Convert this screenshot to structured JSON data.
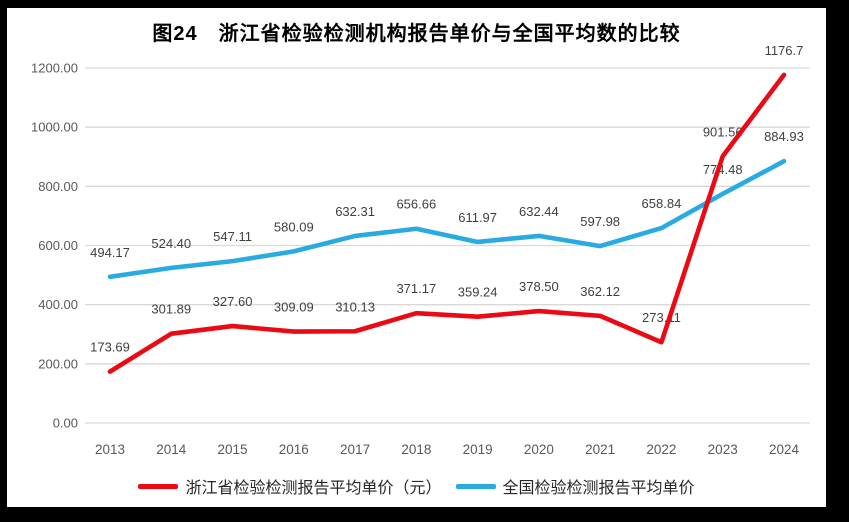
{
  "window": {
    "background": "#000000",
    "panel_background": "#ffffff"
  },
  "chart_data": {
    "type": "line",
    "title": "图24　浙江省检验检测机构报告单价与全国平均数的比较",
    "categories": [
      "2013",
      "2014",
      "2015",
      "2016",
      "2017",
      "2018",
      "2019",
      "2020",
      "2021",
      "2022",
      "2023",
      "2024"
    ],
    "series": [
      {
        "name": "浙江省检验检测报告平均单价（元）",
        "color": "#eb0a14",
        "values": [
          173.69,
          301.89,
          327.6,
          309.09,
          310.13,
          371.17,
          359.24,
          378.5,
          362.12,
          273.11,
          901.56,
          1176.7
        ],
        "labels": [
          "173.69",
          "301.89",
          "327.60",
          "309.09",
          "310.13",
          "371.17",
          "359.24",
          "378.50",
          "362.12",
          "273.11",
          "901.56",
          "1176.7"
        ]
      },
      {
        "name": "全国检验检测报告平均单价",
        "color": "#29aae1",
        "values": [
          494.17,
          524.4,
          547.11,
          580.09,
          632.31,
          656.66,
          611.97,
          632.44,
          597.98,
          658.84,
          774.48,
          884.93
        ],
        "labels": [
          "494.17",
          "524.40",
          "547.11",
          "580.09",
          "632.31",
          "656.66",
          "611.97",
          "632.44",
          "597.98",
          "658.84",
          "774.48",
          "884.93"
        ]
      }
    ],
    "ylim": [
      0,
      1200
    ],
    "ytick_step": 200,
    "y_ticks": [
      "0.00",
      "200.00",
      "400.00",
      "600.00",
      "800.00",
      "1000.00",
      "1200.00"
    ],
    "grid": true,
    "legend_position": "bottom",
    "colors": {
      "gridline": "#d9d9d9",
      "axis_text": "#595959",
      "data_label": "#3f3f3f",
      "title_text": "#000000"
    }
  }
}
